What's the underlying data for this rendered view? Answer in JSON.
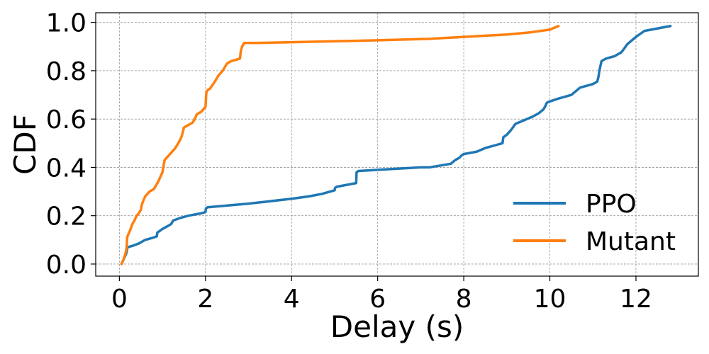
{
  "chart_data": {
    "type": "line",
    "title": "",
    "xlabel": "Delay (s)",
    "ylabel": "CDF",
    "xlim": [
      -0.55,
      13.45
    ],
    "ylim": [
      -0.05,
      1.04
    ],
    "xticks": [
      0,
      2,
      4,
      6,
      8,
      10,
      12
    ],
    "yticks": [
      0.0,
      0.2,
      0.4,
      0.6,
      0.8,
      1.0
    ],
    "xtick_labels": [
      "0",
      "2",
      "4",
      "6",
      "8",
      "10",
      "12"
    ],
    "ytick_labels": [
      "0.0",
      "0.2",
      "0.4",
      "0.6",
      "0.8",
      "1.0"
    ],
    "grid": true,
    "legend_position": "bottom-right",
    "series": [
      {
        "name": "PPO",
        "color": "#1f77b4",
        "x": [
          0.05,
          0.1,
          0.15,
          0.17,
          0.18,
          0.2,
          0.3,
          0.45,
          0.55,
          0.6,
          0.8,
          0.87,
          0.88,
          1.0,
          1.1,
          1.2,
          1.25,
          1.4,
          1.6,
          1.9,
          2.0,
          2.01,
          2.05,
          3.0,
          3.5,
          4.0,
          4.4,
          4.7,
          5.0,
          5.01,
          5.05,
          5.5,
          5.51,
          5.55,
          6.0,
          6.5,
          7.0,
          7.2,
          7.7,
          7.8,
          7.9,
          7.95,
          8.0,
          8.3,
          8.5,
          8.8,
          8.9,
          8.92,
          9.0,
          9.1,
          9.2,
          9.4,
          9.6,
          9.75,
          9.85,
          9.9,
          9.92,
          9.95,
          10.2,
          10.5,
          10.7,
          11.0,
          11.1,
          11.13,
          11.15,
          11.2,
          11.3,
          11.5,
          11.6,
          11.65,
          11.7,
          11.8,
          12.0,
          12.2,
          12.8
        ],
        "values": [
          0.0,
          0.02,
          0.04,
          0.05,
          0.065,
          0.07,
          0.075,
          0.085,
          0.095,
          0.1,
          0.11,
          0.115,
          0.13,
          0.145,
          0.155,
          0.165,
          0.18,
          0.19,
          0.2,
          0.21,
          0.215,
          0.23,
          0.235,
          0.25,
          0.26,
          0.27,
          0.28,
          0.29,
          0.305,
          0.315,
          0.32,
          0.335,
          0.38,
          0.385,
          0.39,
          0.395,
          0.4,
          0.4,
          0.415,
          0.43,
          0.44,
          0.45,
          0.455,
          0.465,
          0.48,
          0.495,
          0.5,
          0.525,
          0.535,
          0.555,
          0.58,
          0.595,
          0.61,
          0.625,
          0.64,
          0.655,
          0.665,
          0.67,
          0.685,
          0.7,
          0.73,
          0.745,
          0.755,
          0.775,
          0.8,
          0.84,
          0.85,
          0.86,
          0.87,
          0.875,
          0.885,
          0.91,
          0.94,
          0.965,
          0.985
        ]
      },
      {
        "name": "Mutant",
        "color": "#ff7f0e",
        "x": [
          0.05,
          0.1,
          0.15,
          0.17,
          0.18,
          0.2,
          0.25,
          0.3,
          0.35,
          0.4,
          0.45,
          0.5,
          0.52,
          0.55,
          0.6,
          0.65,
          0.7,
          0.8,
          0.85,
          0.9,
          0.95,
          1.0,
          1.02,
          1.05,
          1.1,
          1.2,
          1.3,
          1.4,
          1.45,
          1.5,
          1.6,
          1.7,
          1.75,
          1.8,
          1.9,
          2.0,
          2.01,
          2.02,
          2.05,
          2.1,
          2.2,
          2.3,
          2.4,
          2.5,
          2.6,
          2.8,
          2.82,
          2.85,
          2.9,
          3.2,
          4.0,
          5.0,
          6.0,
          7.2,
          8.0,
          9.0,
          9.5,
          10.0,
          10.2
        ],
        "values": [
          0.0,
          0.02,
          0.05,
          0.07,
          0.11,
          0.12,
          0.14,
          0.165,
          0.18,
          0.2,
          0.21,
          0.225,
          0.245,
          0.26,
          0.28,
          0.29,
          0.3,
          0.31,
          0.325,
          0.34,
          0.36,
          0.38,
          0.4,
          0.43,
          0.44,
          0.46,
          0.48,
          0.51,
          0.53,
          0.565,
          0.575,
          0.585,
          0.6,
          0.62,
          0.63,
          0.65,
          0.68,
          0.71,
          0.72,
          0.725,
          0.75,
          0.78,
          0.8,
          0.83,
          0.84,
          0.85,
          0.88,
          0.9,
          0.915,
          0.915,
          0.918,
          0.922,
          0.926,
          0.932,
          0.94,
          0.95,
          0.958,
          0.97,
          0.985
        ]
      }
    ]
  }
}
